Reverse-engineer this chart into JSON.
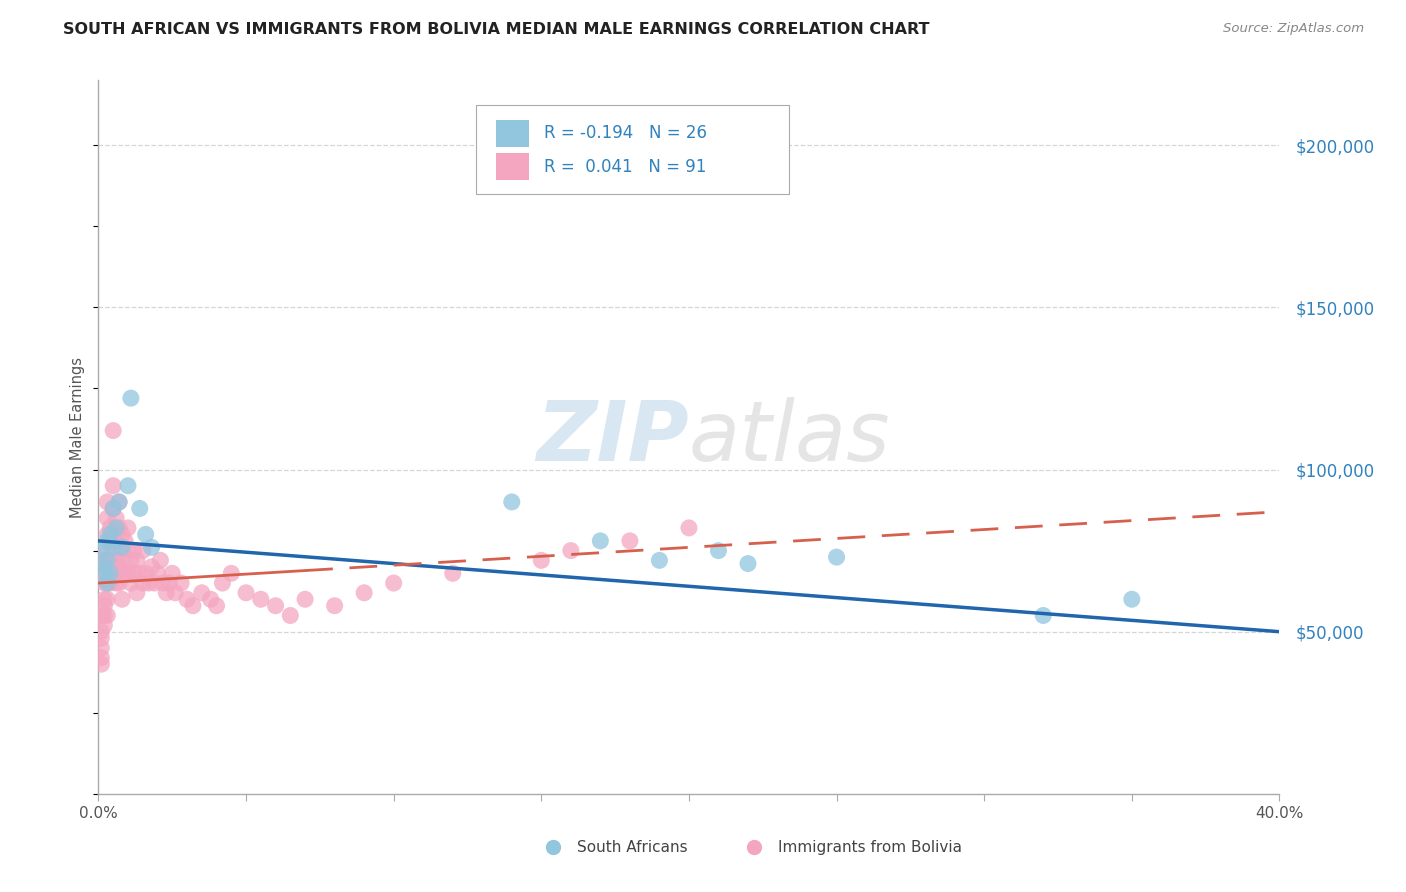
{
  "title": "SOUTH AFRICAN VS IMMIGRANTS FROM BOLIVIA MEDIAN MALE EARNINGS CORRELATION CHART",
  "source": "Source: ZipAtlas.com",
  "ylabel": "Median Male Earnings",
  "ytick_values": [
    50000,
    100000,
    150000,
    200000
  ],
  "xtick_values": [
    0.0,
    0.05,
    0.1,
    0.15,
    0.2,
    0.25,
    0.3,
    0.35,
    0.4
  ],
  "xlim": [
    0.0,
    0.4
  ],
  "ylim": [
    0,
    220000
  ],
  "blue_R": -0.194,
  "blue_N": 26,
  "pink_R": 0.041,
  "pink_N": 91,
  "legend_label_blue": "South Africans",
  "legend_label_pink": "Immigrants from Bolivia",
  "blue_color": "#92c5de",
  "pink_color": "#f4a6c0",
  "blue_line_color": "#2166ac",
  "pink_line_color": "#d6604d",
  "background_color": "#ffffff",
  "grid_color": "#cccccc",
  "blue_line_y0": 78000,
  "blue_line_y1": 50000,
  "pink_line_y0": 65000,
  "pink_line_y1": 87000,
  "blue_points_x": [
    0.001,
    0.002,
    0.002,
    0.003,
    0.003,
    0.003,
    0.004,
    0.004,
    0.005,
    0.005,
    0.006,
    0.007,
    0.008,
    0.01,
    0.011,
    0.014,
    0.016,
    0.018,
    0.14,
    0.17,
    0.19,
    0.21,
    0.22,
    0.25,
    0.32,
    0.35
  ],
  "blue_points_y": [
    75000,
    70000,
    68000,
    72000,
    65000,
    78000,
    80000,
    68000,
    88000,
    76000,
    82000,
    90000,
    76000,
    95000,
    122000,
    88000,
    80000,
    76000,
    90000,
    78000,
    72000,
    75000,
    71000,
    73000,
    55000,
    60000
  ],
  "pink_points_x": [
    0.001,
    0.001,
    0.001,
    0.001,
    0.001,
    0.001,
    0.002,
    0.002,
    0.002,
    0.002,
    0.002,
    0.002,
    0.002,
    0.003,
    0.003,
    0.003,
    0.003,
    0.003,
    0.003,
    0.003,
    0.003,
    0.004,
    0.004,
    0.004,
    0.004,
    0.004,
    0.005,
    0.005,
    0.005,
    0.005,
    0.005,
    0.005,
    0.006,
    0.006,
    0.006,
    0.006,
    0.007,
    0.007,
    0.007,
    0.007,
    0.007,
    0.008,
    0.008,
    0.008,
    0.008,
    0.009,
    0.009,
    0.01,
    0.01,
    0.01,
    0.011,
    0.011,
    0.012,
    0.012,
    0.013,
    0.013,
    0.014,
    0.015,
    0.015,
    0.016,
    0.017,
    0.018,
    0.019,
    0.02,
    0.021,
    0.022,
    0.023,
    0.024,
    0.025,
    0.026,
    0.028,
    0.03,
    0.032,
    0.035,
    0.038,
    0.04,
    0.042,
    0.045,
    0.05,
    0.055,
    0.06,
    0.065,
    0.07,
    0.08,
    0.09,
    0.1,
    0.12,
    0.15,
    0.16,
    0.18,
    0.2
  ],
  "pink_points_y": [
    55000,
    50000,
    48000,
    45000,
    42000,
    40000,
    72000,
    68000,
    65000,
    60000,
    58000,
    55000,
    52000,
    90000,
    85000,
    80000,
    75000,
    70000,
    65000,
    60000,
    55000,
    82000,
    78000,
    72000,
    68000,
    65000,
    112000,
    95000,
    88000,
    80000,
    72000,
    68000,
    85000,
    78000,
    72000,
    65000,
    90000,
    82000,
    75000,
    70000,
    65000,
    80000,
    72000,
    68000,
    60000,
    78000,
    68000,
    82000,
    75000,
    68000,
    72000,
    65000,
    75000,
    68000,
    72000,
    62000,
    68000,
    75000,
    65000,
    68000,
    65000,
    70000,
    65000,
    68000,
    72000,
    65000,
    62000,
    65000,
    68000,
    62000,
    65000,
    60000,
    58000,
    62000,
    60000,
    58000,
    65000,
    68000,
    62000,
    60000,
    58000,
    55000,
    60000,
    58000,
    62000,
    65000,
    68000,
    72000,
    75000,
    78000,
    82000
  ]
}
